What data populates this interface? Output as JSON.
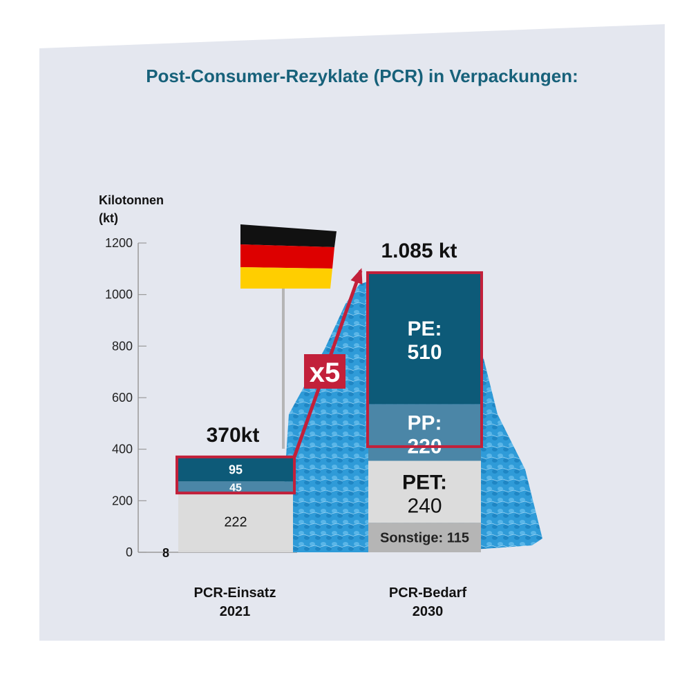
{
  "chart_data": {
    "type": "bar",
    "title": "Post-Consumer-Rezyklate (PCR) in Verpackungen:",
    "ylabel": "Kilotonnen\n(kt)",
    "ylim": [
      0,
      1200
    ],
    "yticks": [
      0,
      200,
      400,
      600,
      800,
      1000,
      1200
    ],
    "grid": false,
    "categories": [
      {
        "line1": "PCR-Einsatz",
        "line2": "2021",
        "total_label": "370kt"
      },
      {
        "line1": "PCR-Bedarf",
        "line2": "2030",
        "total_label": "1.085 kt"
      }
    ],
    "stacks": [
      [
        {
          "name": "",
          "value": 8,
          "label": "8",
          "color": "#d9d9d9"
        },
        {
          "name": "",
          "value": 222,
          "label": "222",
          "color": "#dcdcdc"
        },
        {
          "name": "",
          "value": 45,
          "label": "45",
          "color": "#4b86a7"
        },
        {
          "name": "",
          "value": 95,
          "label": "95",
          "color": "#0d5a78"
        }
      ],
      [
        {
          "name": "Sonstige",
          "value": 115,
          "label": "Sonstige: 115",
          "color": "#b5b5b5"
        },
        {
          "name": "PET",
          "value": 240,
          "label_line1": "PET:",
          "label_line2": "240",
          "color": "#dcdcdc"
        },
        {
          "name": "PP",
          "value": 220,
          "label_line1": "PP:",
          "label_line2": "220",
          "color": "#4b86a7"
        },
        {
          "name": "PE",
          "value": 510,
          "label_line1": "PE:",
          "label_line2": "510",
          "color": "#0d5a78"
        }
      ]
    ],
    "annotation": "x5",
    "colors": {
      "panel": "#e4e7ef",
      "title": "#17617a",
      "accent_red": "#c2203a",
      "pellets": "#2f9bd8"
    }
  }
}
